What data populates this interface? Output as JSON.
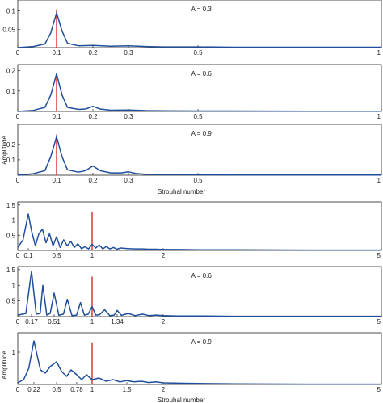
{
  "chart_data": [
    {
      "type": "line",
      "annotation": "A = 0.3",
      "xlabel": "",
      "ylabel": "",
      "xlim": [
        0,
        1
      ],
      "ylim": [
        0,
        0.13
      ],
      "xticks": [
        0,
        0.1,
        0.2,
        0.3,
        0.5,
        1
      ],
      "xtick_labels": [
        "0",
        "0.1",
        "0.2",
        "0.3",
        "0.5",
        "1"
      ],
      "yticks": [
        0.05,
        0.1
      ],
      "ytick_labels": [
        "0.05",
        "0.1"
      ],
      "marker_x": 0.1,
      "series": [
        {
          "color": "#1f4e9c",
          "x": [
            0,
            0.04,
            0.07,
            0.085,
            0.1,
            0.115,
            0.13,
            0.16,
            0.2,
            0.25,
            0.3,
            0.35,
            0.4,
            0.5,
            0.6,
            0.8,
            1.0
          ],
          "y": [
            0,
            0.003,
            0.01,
            0.04,
            0.095,
            0.045,
            0.012,
            0.005,
            0.006,
            0.004,
            0.005,
            0.003,
            0.002,
            0.002,
            0.001,
            0.001,
            0.001
          ]
        }
      ]
    },
    {
      "type": "line",
      "annotation": "A = 0.6",
      "xlabel": "",
      "ylabel": "",
      "xlim": [
        0,
        1
      ],
      "ylim": [
        0,
        0.23
      ],
      "xticks": [
        0,
        0.1,
        0.2,
        0.3,
        0.5,
        1
      ],
      "xtick_labels": [
        "0",
        "0.1",
        "0.2",
        "0.3",
        "0.5",
        "1"
      ],
      "yticks": [
        0.1,
        0.2
      ],
      "ytick_labels": [
        "0.1",
        "0.2"
      ],
      "marker_x": 0.1,
      "series": [
        {
          "color": "#1f4e9c",
          "x": [
            0,
            0.04,
            0.07,
            0.085,
            0.1,
            0.115,
            0.13,
            0.16,
            0.18,
            0.2,
            0.22,
            0.25,
            0.3,
            0.35,
            0.4,
            0.5,
            0.6,
            0.8,
            1.0
          ],
          "y": [
            0,
            0.005,
            0.02,
            0.08,
            0.185,
            0.08,
            0.02,
            0.01,
            0.012,
            0.025,
            0.012,
            0.006,
            0.007,
            0.004,
            0.003,
            0.002,
            0.002,
            0.001,
            0.001
          ]
        }
      ]
    },
    {
      "type": "line",
      "annotation": "A = 0.9",
      "xlabel": "Strouhal number",
      "ylabel": "Amplitude",
      "xlim": [
        0,
        1
      ],
      "ylim": [
        0,
        0.33
      ],
      "xticks": [
        0,
        0.1,
        0.2,
        0.3,
        0.5,
        1
      ],
      "xtick_labels": [
        "0",
        "0.1",
        "0.2",
        "0.3",
        "0.5",
        "1"
      ],
      "yticks": [
        0.1,
        0.2
      ],
      "ytick_labels": [
        "0.1",
        "0.2"
      ],
      "marker_x": 0.1,
      "series": [
        {
          "color": "#1f4e9c",
          "x": [
            0,
            0.04,
            0.07,
            0.085,
            0.1,
            0.115,
            0.13,
            0.16,
            0.18,
            0.2,
            0.22,
            0.25,
            0.28,
            0.3,
            0.32,
            0.35,
            0.4,
            0.5,
            0.6,
            0.8,
            1.0
          ],
          "y": [
            0,
            0.01,
            0.03,
            0.12,
            0.25,
            0.12,
            0.035,
            0.02,
            0.03,
            0.06,
            0.03,
            0.015,
            0.015,
            0.022,
            0.012,
            0.006,
            0.004,
            0.003,
            0.002,
            0.002,
            0.001
          ]
        }
      ]
    },
    {
      "type": "line",
      "annotation": "",
      "xlabel": "",
      "ylabel": "",
      "xlim": [
        0,
        5
      ],
      "ylim": [
        0,
        1.6
      ],
      "xticks": [
        0,
        0.1,
        0.5,
        1,
        2,
        5
      ],
      "xtick_labels": [
        "0",
        "0.1",
        "0.5",
        "1",
        "2",
        "5"
      ],
      "yticks": [
        0.5,
        1,
        1.5
      ],
      "ytick_labels": [
        "0.5",
        "1",
        "1.5"
      ],
      "marker_x": 1,
      "series": [
        {
          "color": "#1f4e9c",
          "x": [
            0,
            0.05,
            0.1,
            0.15,
            0.2,
            0.25,
            0.3,
            0.35,
            0.4,
            0.45,
            0.5,
            0.55,
            0.6,
            0.65,
            0.7,
            0.75,
            0.8,
            0.85,
            0.9,
            0.95,
            1.0,
            1.05,
            1.1,
            1.15,
            1.2,
            1.25,
            1.3,
            1.35,
            1.4,
            1.5,
            1.6,
            1.7,
            1.8,
            1.9,
            2.0,
            2.2,
            2.5,
            3.0,
            4.0,
            5.0
          ],
          "y": [
            0.1,
            0.35,
            1.2,
            0.6,
            0.15,
            0.55,
            0.7,
            0.25,
            0.55,
            0.15,
            0.45,
            0.1,
            0.35,
            0.15,
            0.3,
            0.1,
            0.22,
            0.06,
            0.12,
            0.05,
            0.2,
            0.08,
            0.18,
            0.05,
            0.13,
            0.05,
            0.1,
            0.04,
            0.08,
            0.06,
            0.05,
            0.05,
            0.04,
            0.04,
            0.03,
            0.03,
            0.02,
            0.02,
            0.01,
            0.01
          ]
        }
      ]
    },
    {
      "type": "line",
      "annotation": "A = 0.6",
      "xlabel": "",
      "ylabel": "",
      "xlim": [
        0,
        5
      ],
      "ylim": [
        0,
        1.6
      ],
      "xticks": [
        0,
        0.17,
        0.51,
        1,
        1.34,
        2,
        5
      ],
      "xtick_labels": [
        "0",
        "0.17",
        "0.51",
        "1",
        "1.34",
        "2",
        "5"
      ],
      "yticks": [
        0.5,
        1,
        1.5
      ],
      "ytick_labels": [
        "0.5",
        "1",
        "1.5"
      ],
      "marker_x": 1,
      "series": [
        {
          "color": "#1f4e9c",
          "x": [
            0,
            0.1,
            0.17,
            0.24,
            0.3,
            0.34,
            0.4,
            0.45,
            0.51,
            0.57,
            0.63,
            0.68,
            0.74,
            0.8,
            0.85,
            0.9,
            0.95,
            1.0,
            1.05,
            1.1,
            1.17,
            1.24,
            1.3,
            1.34,
            1.4,
            1.5,
            1.6,
            1.7,
            1.8,
            1.9,
            2.0,
            2.2,
            2.5,
            3.0,
            4.0,
            5.0
          ],
          "y": [
            0.05,
            0.1,
            1.45,
            0.08,
            0.1,
            1.0,
            0.05,
            0.1,
            0.75,
            0.04,
            0.08,
            0.55,
            0.03,
            0.05,
            0.45,
            0.05,
            0.08,
            0.32,
            0.05,
            0.06,
            0.22,
            0.03,
            0.05,
            0.2,
            0.04,
            0.1,
            0.03,
            0.08,
            0.03,
            0.05,
            0.03,
            0.02,
            0.02,
            0.01,
            0.01,
            0.01
          ]
        }
      ]
    },
    {
      "type": "line",
      "annotation": "A = 0.9",
      "xlabel": "Strouhal number",
      "ylabel": "Amplitude",
      "xlim": [
        0,
        5
      ],
      "ylim": [
        0,
        1.6
      ],
      "xticks": [
        0,
        0.22,
        0.5,
        0.78,
        1,
        1.5,
        2,
        5
      ],
      "xtick_labels": [
        "0",
        "0.22",
        "0.5",
        "0.78",
        "1",
        "1.5",
        "2",
        "5"
      ],
      "yticks": [
        1
      ],
      "ytick_labels": [
        "1"
      ],
      "marker_x": 1,
      "series": [
        {
          "color": "#1f4e9c",
          "x": [
            0,
            0.08,
            0.15,
            0.22,
            0.3,
            0.36,
            0.42,
            0.5,
            0.57,
            0.64,
            0.7,
            0.78,
            0.85,
            0.92,
            1.0,
            1.1,
            1.2,
            1.3,
            1.4,
            1.5,
            1.6,
            1.7,
            1.8,
            1.9,
            2.0,
            2.2,
            2.5,
            3.0,
            4.0,
            5.0
          ],
          "y": [
            0.05,
            0.15,
            0.5,
            1.35,
            0.45,
            0.35,
            0.55,
            0.7,
            0.4,
            0.25,
            0.45,
            0.3,
            0.15,
            0.3,
            0.15,
            0.2,
            0.1,
            0.15,
            0.08,
            0.12,
            0.08,
            0.1,
            0.06,
            0.08,
            0.05,
            0.04,
            0.03,
            0.02,
            0.01,
            0.01
          ]
        }
      ]
    }
  ]
}
